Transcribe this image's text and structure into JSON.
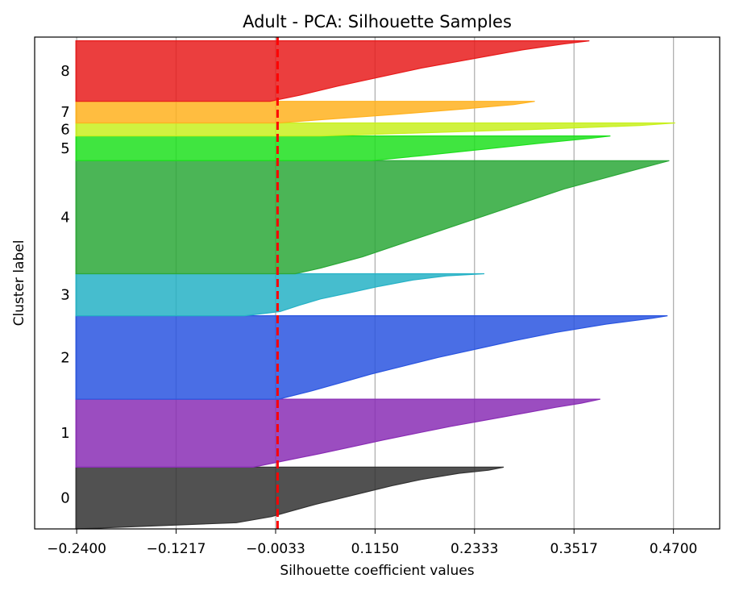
{
  "chart_data": {
    "type": "area",
    "title": "Adult - PCA: Silhouette Samples",
    "xlabel": "Silhouette coefficient values",
    "ylabel": "Cluster label",
    "xlim": [
      -0.29,
      0.525
    ],
    "x_ticks": [
      "−0.2400",
      "−0.1217",
      "−0.0033",
      "0.1150",
      "0.2333",
      "0.3517",
      "0.4700"
    ],
    "x_tick_values": [
      -0.24,
      -0.1217,
      -0.0033,
      0.115,
      0.2333,
      0.3517,
      0.47
    ],
    "grid": "vertical",
    "average_silhouette": -0.001,
    "average_line_color": "#ff0000",
    "clusters": [
      {
        "label": "0",
        "color": "#333333",
        "band": [
          0,
          10
        ],
        "profile": [
          [
            0.0,
            0.268
          ],
          [
            0.05,
            0.25
          ],
          [
            0.1,
            0.215
          ],
          [
            0.2,
            0.17
          ],
          [
            0.3,
            0.135
          ],
          [
            0.4,
            0.105
          ],
          [
            0.5,
            0.075
          ],
          [
            0.6,
            0.045
          ],
          [
            0.7,
            0.018
          ],
          [
            0.8,
            -0.008
          ],
          [
            0.9,
            -0.05
          ],
          [
            1.0,
            -0.24
          ]
        ]
      },
      {
        "label": "1",
        "color": "#8a2eb5",
        "band": [
          10,
          21
        ],
        "profile": [
          [
            0.0,
            0.383
          ],
          [
            0.06,
            0.36
          ],
          [
            0.12,
            0.33
          ],
          [
            0.2,
            0.295
          ],
          [
            0.3,
            0.25
          ],
          [
            0.4,
            0.205
          ],
          [
            0.5,
            0.165
          ],
          [
            0.6,
            0.125
          ],
          [
            0.7,
            0.088
          ],
          [
            0.8,
            0.05
          ],
          [
            0.9,
            0.01
          ],
          [
            1.0,
            -0.03
          ]
        ]
      },
      {
        "label": "2",
        "color": "#2a55e0",
        "band": [
          21,
          34.5
        ],
        "profile": [
          [
            0.0,
            0.463
          ],
          [
            0.03,
            0.445
          ],
          [
            0.1,
            0.39
          ],
          [
            0.2,
            0.33
          ],
          [
            0.3,
            0.28
          ],
          [
            0.4,
            0.235
          ],
          [
            0.5,
            0.19
          ],
          [
            0.6,
            0.15
          ],
          [
            0.7,
            0.11
          ],
          [
            0.8,
            0.075
          ],
          [
            0.9,
            0.04
          ],
          [
            1.0,
            0.0
          ]
        ]
      },
      {
        "label": "3",
        "color": "#26b2c6",
        "band": [
          34.5,
          41.3
        ],
        "profile": [
          [
            0.0,
            0.245
          ],
          [
            0.05,
            0.2
          ],
          [
            0.15,
            0.16
          ],
          [
            0.3,
            0.12
          ],
          [
            0.45,
            0.085
          ],
          [
            0.6,
            0.05
          ],
          [
            0.75,
            0.025
          ],
          [
            0.9,
            0.002
          ],
          [
            1.0,
            -0.04
          ]
        ]
      },
      {
        "label": "4",
        "color": "#2ca838",
        "band": [
          41.3,
          59.6
        ],
        "profile": [
          [
            0.0,
            0.465
          ],
          [
            0.02,
            0.455
          ],
          [
            0.07,
            0.43
          ],
          [
            0.15,
            0.39
          ],
          [
            0.25,
            0.34
          ],
          [
            0.35,
            0.3
          ],
          [
            0.45,
            0.26
          ],
          [
            0.55,
            0.22
          ],
          [
            0.65,
            0.18
          ],
          [
            0.75,
            0.14
          ],
          [
            0.85,
            0.1
          ],
          [
            0.95,
            0.05
          ],
          [
            1.0,
            0.02
          ]
        ]
      },
      {
        "label": "5",
        "color": "#1ee01e",
        "band": [
          59.6,
          63.6
        ],
        "profile": [
          [
            0.0,
            0.395
          ],
          [
            0.1,
            0.37
          ],
          [
            0.3,
            0.31
          ],
          [
            0.55,
            0.24
          ],
          [
            0.8,
            0.17
          ],
          [
            1.0,
            0.11
          ]
        ]
      },
      {
        "label": "6",
        "color": "#c8f01e",
        "band": [
          63.6,
          65.7
        ],
        "profile": [
          [
            0.0,
            0.472
          ],
          [
            0.2,
            0.43
          ],
          [
            0.5,
            0.3
          ],
          [
            0.8,
            0.15
          ],
          [
            1.0,
            0.05
          ]
        ]
      },
      {
        "label": "7",
        "color": "#ffb21e",
        "band": [
          65.7,
          69.2
        ],
        "profile": [
          [
            0.0,
            0.305
          ],
          [
            0.15,
            0.28
          ],
          [
            0.35,
            0.22
          ],
          [
            0.6,
            0.14
          ],
          [
            0.85,
            0.05
          ],
          [
            1.0,
            0.0
          ]
        ]
      },
      {
        "label": "8",
        "color": "#e81c1c",
        "band": [
          69.2,
          79.0
        ],
        "profile": [
          [
            0.0,
            0.37
          ],
          [
            0.05,
            0.34
          ],
          [
            0.15,
            0.29
          ],
          [
            0.3,
            0.23
          ],
          [
            0.45,
            0.17
          ],
          [
            0.6,
            0.12
          ],
          [
            0.75,
            0.07
          ],
          [
            0.9,
            0.025
          ],
          [
            1.0,
            -0.01
          ]
        ]
      }
    ]
  }
}
